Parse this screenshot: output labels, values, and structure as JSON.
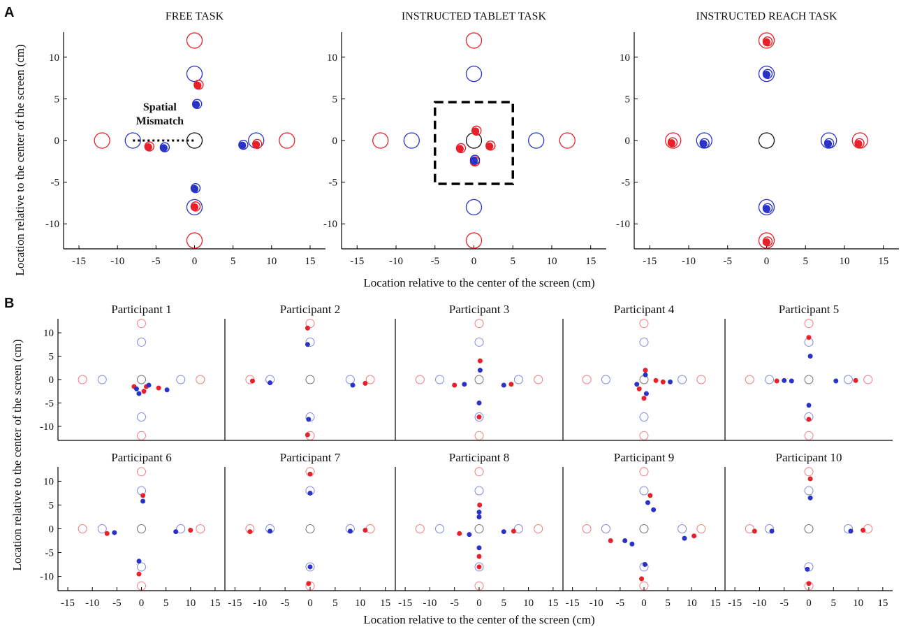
{
  "figure": {
    "panel_a_label": "A",
    "panel_b_label": "B",
    "panel_a_xlabel": "Location relative to the center of the screen (cm)",
    "panel_a_ylabel": "Location relative to the center of the screen (cm)",
    "panel_b_xlabel": "Location relative to the center of the screen (cm)",
    "panel_b_ylabel": "Location relative to the center of the screen (cm)",
    "annotation": "Spatial Mismatch",
    "annotation_lines": [
      "Spatial",
      "Mismatch"
    ]
  },
  "colors": {
    "red": "#e8202a",
    "blue": "#2a33c8",
    "black": "#111111"
  },
  "chart_data": [
    {
      "type": "scatter",
      "title": "FREE TASK",
      "xlim": [
        -17,
        17
      ],
      "ylim": [
        -13,
        13
      ],
      "xticks": [
        -15,
        -10,
        -5,
        0,
        5,
        10,
        15
      ],
      "yticks": [
        -10,
        -5,
        0,
        5,
        10
      ],
      "target_circles": [
        {
          "x": 0,
          "y": 0,
          "color": "black"
        },
        {
          "x": -8,
          "y": 0,
          "color": "blue"
        },
        {
          "x": 8,
          "y": 0,
          "color": "blue"
        },
        {
          "x": 0,
          "y": 8,
          "color": "blue"
        },
        {
          "x": 0,
          "y": -8,
          "color": "blue"
        },
        {
          "x": -12,
          "y": 0,
          "color": "red"
        },
        {
          "x": 12,
          "y": 0,
          "color": "red"
        },
        {
          "x": 0,
          "y": 12,
          "color": "red"
        },
        {
          "x": 0,
          "y": -12,
          "color": "red"
        }
      ],
      "responses": [
        {
          "x": 0.4,
          "y": 6.6,
          "color": "red"
        },
        {
          "x": 0.2,
          "y": 4.3,
          "color": "blue"
        },
        {
          "x": -6,
          "y": -0.8,
          "color": "red"
        },
        {
          "x": -4,
          "y": -0.9,
          "color": "blue"
        },
        {
          "x": 6.2,
          "y": -0.6,
          "color": "blue"
        },
        {
          "x": 8,
          "y": -0.5,
          "color": "red"
        },
        {
          "x": 0,
          "y": -5.8,
          "color": "blue"
        },
        {
          "x": 0,
          "y": -8,
          "color": "red"
        }
      ],
      "mismatch_line": {
        "x_from": -8,
        "x_to": 0,
        "y": 0
      }
    },
    {
      "type": "scatter",
      "title": "INSTRUCTED TABLET TASK",
      "xlim": [
        -17,
        17
      ],
      "ylim": [
        -13,
        13
      ],
      "xticks": [
        -15,
        -10,
        -5,
        0,
        5,
        10,
        15
      ],
      "yticks": [
        -10,
        -5,
        0,
        5,
        10
      ],
      "target_circles": [
        {
          "x": 0,
          "y": 0,
          "color": "black"
        },
        {
          "x": -8,
          "y": 0,
          "color": "blue"
        },
        {
          "x": 8,
          "y": 0,
          "color": "blue"
        },
        {
          "x": 0,
          "y": 8,
          "color": "blue"
        },
        {
          "x": 0,
          "y": -8,
          "color": "blue"
        },
        {
          "x": -12,
          "y": 0,
          "color": "red"
        },
        {
          "x": 12,
          "y": 0,
          "color": "red"
        },
        {
          "x": 0,
          "y": 12,
          "color": "red"
        },
        {
          "x": 0,
          "y": -12,
          "color": "red"
        }
      ],
      "responses": [
        {
          "x": 0.2,
          "y": 1.1,
          "color": "red"
        },
        {
          "x": -1.8,
          "y": -1.0,
          "color": "red"
        },
        {
          "x": 2,
          "y": -0.7,
          "color": "red"
        },
        {
          "x": 0,
          "y": -2.6,
          "color": "red"
        },
        {
          "x": 0,
          "y": -2.4,
          "color": "blue"
        }
      ],
      "dashed_box": {
        "x0": -5,
        "x1": 5,
        "y0": -5.2,
        "y1": 4.6
      }
    },
    {
      "type": "scatter",
      "title": "INSTRUCTED REACH TASK",
      "xlim": [
        -17,
        17
      ],
      "ylim": [
        -13,
        13
      ],
      "xticks": [
        -15,
        -10,
        -5,
        0,
        5,
        10,
        15
      ],
      "yticks": [
        -10,
        -5,
        0,
        5,
        10
      ],
      "target_circles": [
        {
          "x": 0,
          "y": 0,
          "color": "black"
        },
        {
          "x": -8,
          "y": 0,
          "color": "blue"
        },
        {
          "x": 8,
          "y": 0,
          "color": "blue"
        },
        {
          "x": 0,
          "y": 8,
          "color": "blue"
        },
        {
          "x": 0,
          "y": -8,
          "color": "blue"
        },
        {
          "x": -12,
          "y": 0,
          "color": "red"
        },
        {
          "x": 12,
          "y": 0,
          "color": "red"
        },
        {
          "x": 0,
          "y": 12,
          "color": "red"
        },
        {
          "x": 0,
          "y": -12,
          "color": "red"
        }
      ],
      "responses": [
        {
          "x": 0,
          "y": 11.8,
          "color": "red"
        },
        {
          "x": 0,
          "y": 7.9,
          "color": "blue"
        },
        {
          "x": -12.2,
          "y": -0.3,
          "color": "red"
        },
        {
          "x": -8.1,
          "y": -0.4,
          "color": "blue"
        },
        {
          "x": 7.9,
          "y": -0.4,
          "color": "blue"
        },
        {
          "x": 11.8,
          "y": -0.4,
          "color": "red"
        },
        {
          "x": 0,
          "y": -8.2,
          "color": "blue"
        },
        {
          "x": 0,
          "y": -12.2,
          "color": "red"
        }
      ]
    },
    {
      "type": "scatter",
      "title": "Participant 1",
      "xlim": [
        -17,
        17
      ],
      "ylim": [
        -13,
        13
      ],
      "responses": [
        {
          "x": -1.5,
          "y": -1.5,
          "color": "red"
        },
        {
          "x": -1,
          "y": -2,
          "color": "blue"
        },
        {
          "x": 1,
          "y": -1.5,
          "color": "red"
        },
        {
          "x": 1.5,
          "y": -1.2,
          "color": "blue"
        },
        {
          "x": 3.5,
          "y": -1.8,
          "color": "red"
        },
        {
          "x": 5.2,
          "y": -2.2,
          "color": "blue"
        },
        {
          "x": -0.5,
          "y": -3,
          "color": "blue"
        },
        {
          "x": 0.5,
          "y": -2.5,
          "color": "red"
        }
      ]
    },
    {
      "type": "scatter",
      "title": "Participant 2",
      "xlim": [
        -17,
        17
      ],
      "ylim": [
        -13,
        13
      ],
      "responses": [
        {
          "x": -0.5,
          "y": 11,
          "color": "red"
        },
        {
          "x": -0.5,
          "y": 7.5,
          "color": "blue"
        },
        {
          "x": -11.5,
          "y": -0.3,
          "color": "red"
        },
        {
          "x": -8,
          "y": -0.7,
          "color": "blue"
        },
        {
          "x": 8.5,
          "y": -1.2,
          "color": "blue"
        },
        {
          "x": 11,
          "y": -0.8,
          "color": "red"
        },
        {
          "x": -0.3,
          "y": -8.5,
          "color": "blue"
        },
        {
          "x": -0.5,
          "y": -11.8,
          "color": "red"
        }
      ]
    },
    {
      "type": "scatter",
      "title": "Participant 3",
      "xlim": [
        -17,
        17
      ],
      "ylim": [
        -13,
        13
      ],
      "responses": [
        {
          "x": 0.2,
          "y": 4,
          "color": "red"
        },
        {
          "x": 0.2,
          "y": 2,
          "color": "blue"
        },
        {
          "x": -5,
          "y": -1.2,
          "color": "red"
        },
        {
          "x": -3,
          "y": -1,
          "color": "blue"
        },
        {
          "x": 5,
          "y": -1.2,
          "color": "blue"
        },
        {
          "x": 6.5,
          "y": -1,
          "color": "red"
        },
        {
          "x": 0,
          "y": -5,
          "color": "blue"
        },
        {
          "x": 0,
          "y": -8,
          "color": "red"
        }
      ]
    },
    {
      "type": "scatter",
      "title": "Participant 4",
      "xlim": [
        -17,
        17
      ],
      "ylim": [
        -13,
        13
      ],
      "responses": [
        {
          "x": 0.3,
          "y": 2,
          "color": "red"
        },
        {
          "x": 0.3,
          "y": 1,
          "color": "blue"
        },
        {
          "x": -1.5,
          "y": -1,
          "color": "blue"
        },
        {
          "x": -1,
          "y": -2,
          "color": "red"
        },
        {
          "x": 0.5,
          "y": -3,
          "color": "blue"
        },
        {
          "x": 0,
          "y": -4,
          "color": "red"
        },
        {
          "x": 2.5,
          "y": -0.2,
          "color": "red"
        },
        {
          "x": 4,
          "y": -0.5,
          "color": "red"
        },
        {
          "x": 5.5,
          "y": -0.5,
          "color": "blue"
        }
      ]
    },
    {
      "type": "scatter",
      "title": "Participant 5",
      "xlim": [
        -17,
        17
      ],
      "ylim": [
        -13,
        13
      ],
      "responses": [
        {
          "x": 0,
          "y": 9,
          "color": "red"
        },
        {
          "x": 0.3,
          "y": 5,
          "color": "blue"
        },
        {
          "x": -6.5,
          "y": -0.3,
          "color": "red"
        },
        {
          "x": -5,
          "y": -0.2,
          "color": "blue"
        },
        {
          "x": -3.5,
          "y": -0.3,
          "color": "blue"
        },
        {
          "x": 5.5,
          "y": -0.3,
          "color": "blue"
        },
        {
          "x": 9.5,
          "y": -0.2,
          "color": "red"
        },
        {
          "x": 0,
          "y": -5.5,
          "color": "blue"
        },
        {
          "x": 0,
          "y": -8.5,
          "color": "red"
        }
      ]
    },
    {
      "type": "scatter",
      "title": "Participant 6",
      "xlim": [
        -17,
        17
      ],
      "ylim": [
        -13,
        13
      ],
      "responses": [
        {
          "x": 0.3,
          "y": 7,
          "color": "red"
        },
        {
          "x": 0.3,
          "y": 5.8,
          "color": "blue"
        },
        {
          "x": -7,
          "y": -1,
          "color": "red"
        },
        {
          "x": -5.5,
          "y": -0.8,
          "color": "blue"
        },
        {
          "x": 7,
          "y": -0.6,
          "color": "blue"
        },
        {
          "x": 10,
          "y": -0.3,
          "color": "red"
        },
        {
          "x": -0.5,
          "y": -6.8,
          "color": "blue"
        },
        {
          "x": -0.5,
          "y": -9.5,
          "color": "red"
        }
      ]
    },
    {
      "type": "scatter",
      "title": "Participant 7",
      "xlim": [
        -17,
        17
      ],
      "ylim": [
        -13,
        13
      ],
      "responses": [
        {
          "x": 0,
          "y": 11.5,
          "color": "red"
        },
        {
          "x": 0,
          "y": 7.5,
          "color": "blue"
        },
        {
          "x": -12,
          "y": -0.6,
          "color": "red"
        },
        {
          "x": -8,
          "y": -0.5,
          "color": "blue"
        },
        {
          "x": 8,
          "y": -0.5,
          "color": "blue"
        },
        {
          "x": 11,
          "y": -0.3,
          "color": "red"
        },
        {
          "x": 0,
          "y": -8,
          "color": "blue"
        },
        {
          "x": -0.3,
          "y": -11.5,
          "color": "red"
        }
      ]
    },
    {
      "type": "scatter",
      "title": "Participant 8",
      "xlim": [
        -17,
        17
      ],
      "ylim": [
        -13,
        13
      ],
      "responses": [
        {
          "x": 0.1,
          "y": 5,
          "color": "red"
        },
        {
          "x": 0,
          "y": 3.5,
          "color": "blue"
        },
        {
          "x": 0,
          "y": 2.5,
          "color": "blue"
        },
        {
          "x": -4,
          "y": -1,
          "color": "red"
        },
        {
          "x": -2,
          "y": -1.2,
          "color": "blue"
        },
        {
          "x": 5,
          "y": -0.6,
          "color": "blue"
        },
        {
          "x": 7,
          "y": -0.5,
          "color": "red"
        },
        {
          "x": 0,
          "y": -4,
          "color": "blue"
        },
        {
          "x": 0,
          "y": -5.8,
          "color": "red"
        },
        {
          "x": 0,
          "y": -8,
          "color": "red"
        }
      ]
    },
    {
      "type": "scatter",
      "title": "Participant 9",
      "xlim": [
        -17,
        17
      ],
      "ylim": [
        -13,
        13
      ],
      "responses": [
        {
          "x": 1.3,
          "y": 7,
          "color": "red"
        },
        {
          "x": 0.8,
          "y": 5.5,
          "color": "blue"
        },
        {
          "x": 2,
          "y": 4,
          "color": "blue"
        },
        {
          "x": -7,
          "y": -2.5,
          "color": "red"
        },
        {
          "x": -4,
          "y": -2.5,
          "color": "blue"
        },
        {
          "x": -2.5,
          "y": -3.2,
          "color": "blue"
        },
        {
          "x": 8.5,
          "y": -2,
          "color": "blue"
        },
        {
          "x": 10.5,
          "y": -1.5,
          "color": "red"
        },
        {
          "x": 0.2,
          "y": -7.5,
          "color": "blue"
        },
        {
          "x": -0.5,
          "y": -10.5,
          "color": "red"
        }
      ]
    },
    {
      "type": "scatter",
      "title": "Participant 10",
      "xlim": [
        -17,
        17
      ],
      "ylim": [
        -13,
        13
      ],
      "responses": [
        {
          "x": 0.3,
          "y": 10.5,
          "color": "red"
        },
        {
          "x": 0.3,
          "y": 6.5,
          "color": "blue"
        },
        {
          "x": -11,
          "y": -0.5,
          "color": "red"
        },
        {
          "x": -7.5,
          "y": -0.5,
          "color": "blue"
        },
        {
          "x": 8.5,
          "y": -0.5,
          "color": "blue"
        },
        {
          "x": 11,
          "y": -0.3,
          "color": "red"
        },
        {
          "x": -0.3,
          "y": -8.5,
          "color": "blue"
        },
        {
          "x": 0,
          "y": -11.5,
          "color": "red"
        }
      ]
    }
  ]
}
